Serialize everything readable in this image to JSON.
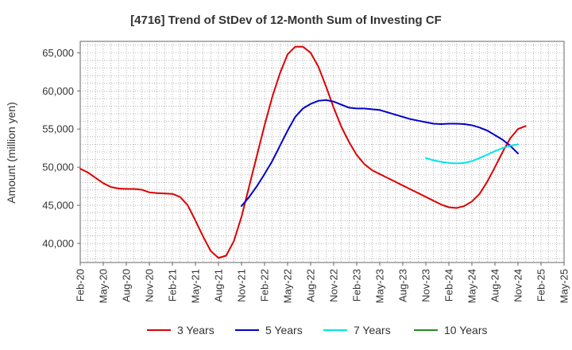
{
  "chart_data": {
    "type": "line",
    "title": "[4716]  Trend of StDev of 12-Month Sum of Investing CF",
    "xlabel": "",
    "ylabel": "Amount (million yen)",
    "x_ticks": [
      "Feb-20",
      "May-20",
      "Aug-20",
      "Nov-20",
      "Feb-21",
      "May-21",
      "Aug-21",
      "Nov-21",
      "Feb-22",
      "May-22",
      "Aug-22",
      "Nov-22",
      "Feb-23",
      "May-23",
      "Aug-23",
      "Nov-23",
      "Feb-24",
      "May-24",
      "Aug-24",
      "Nov-24",
      "Feb-25",
      "May-25"
    ],
    "y_ticks": [
      "40,000",
      "45,000",
      "50,000",
      "55,000",
      "60,000",
      "65,000"
    ],
    "y_tick_values": [
      40000,
      45000,
      50000,
      55000,
      60000,
      65000
    ],
    "ylim": [
      37500,
      66500
    ],
    "x_months": [
      "2020-02",
      "2025-05"
    ],
    "grid": true,
    "legend_position": "bottom",
    "series": [
      {
        "name": "3 Years",
        "color": "#dd0000",
        "points": [
          [
            "2020-02",
            49800
          ],
          [
            "2020-03",
            49300
          ],
          [
            "2020-04",
            48600
          ],
          [
            "2020-05",
            47900
          ],
          [
            "2020-06",
            47400
          ],
          [
            "2020-07",
            47200
          ],
          [
            "2020-08",
            47150
          ],
          [
            "2020-09",
            47150
          ],
          [
            "2020-10",
            47050
          ],
          [
            "2020-11",
            46700
          ],
          [
            "2020-12",
            46600
          ],
          [
            "2021-01",
            46550
          ],
          [
            "2021-02",
            46500
          ],
          [
            "2021-03",
            46100
          ],
          [
            "2021-04",
            45000
          ],
          [
            "2021-05",
            43000
          ],
          [
            "2021-06",
            40900
          ],
          [
            "2021-07",
            39000
          ],
          [
            "2021-08",
            38100
          ],
          [
            "2021-09",
            38400
          ],
          [
            "2021-10",
            40300
          ],
          [
            "2021-11",
            43500
          ],
          [
            "2021-12",
            47500
          ],
          [
            "2022-01",
            51500
          ],
          [
            "2022-02",
            55500
          ],
          [
            "2022-03",
            59200
          ],
          [
            "2022-04",
            62300
          ],
          [
            "2022-05",
            64800
          ],
          [
            "2022-06",
            65800
          ],
          [
            "2022-07",
            65800
          ],
          [
            "2022-08",
            65000
          ],
          [
            "2022-09",
            63200
          ],
          [
            "2022-10",
            60600
          ],
          [
            "2022-11",
            57800
          ],
          [
            "2022-12",
            55300
          ],
          [
            "2023-01",
            53300
          ],
          [
            "2023-02",
            51600
          ],
          [
            "2023-03",
            50400
          ],
          [
            "2023-04",
            49600
          ],
          [
            "2023-05",
            49100
          ],
          [
            "2023-06",
            48600
          ],
          [
            "2023-07",
            48100
          ],
          [
            "2023-08",
            47600
          ],
          [
            "2023-09",
            47100
          ],
          [
            "2023-10",
            46600
          ],
          [
            "2023-11",
            46100
          ],
          [
            "2023-12",
            45600
          ],
          [
            "2024-01",
            45100
          ],
          [
            "2024-02",
            44750
          ],
          [
            "2024-03",
            44650
          ],
          [
            "2024-04",
            44900
          ],
          [
            "2024-05",
            45500
          ],
          [
            "2024-06",
            46500
          ],
          [
            "2024-07",
            48100
          ],
          [
            "2024-08",
            50000
          ],
          [
            "2024-09",
            52000
          ],
          [
            "2024-10",
            53800
          ],
          [
            "2024-11",
            55000
          ],
          [
            "2024-12",
            55400
          ]
        ]
      },
      {
        "name": "5 Years",
        "color": "#0000cc",
        "points": [
          [
            "2021-11",
            44900
          ],
          [
            "2021-12",
            46100
          ],
          [
            "2022-01",
            47500
          ],
          [
            "2022-02",
            49100
          ],
          [
            "2022-03",
            50800
          ],
          [
            "2022-04",
            52800
          ],
          [
            "2022-05",
            54800
          ],
          [
            "2022-06",
            56600
          ],
          [
            "2022-07",
            57700
          ],
          [
            "2022-08",
            58300
          ],
          [
            "2022-09",
            58700
          ],
          [
            "2022-10",
            58800
          ],
          [
            "2022-11",
            58600
          ],
          [
            "2022-12",
            58200
          ],
          [
            "2023-01",
            57800
          ],
          [
            "2023-02",
            57700
          ],
          [
            "2023-03",
            57700
          ],
          [
            "2023-04",
            57600
          ],
          [
            "2023-05",
            57500
          ],
          [
            "2023-06",
            57200
          ],
          [
            "2023-07",
            56900
          ],
          [
            "2023-08",
            56600
          ],
          [
            "2023-09",
            56300
          ],
          [
            "2023-10",
            56100
          ],
          [
            "2023-11",
            55900
          ],
          [
            "2023-12",
            55700
          ],
          [
            "2024-01",
            55650
          ],
          [
            "2024-02",
            55700
          ],
          [
            "2024-03",
            55700
          ],
          [
            "2024-04",
            55650
          ],
          [
            "2024-05",
            55500
          ],
          [
            "2024-06",
            55200
          ],
          [
            "2024-07",
            54800
          ],
          [
            "2024-08",
            54200
          ],
          [
            "2024-09",
            53600
          ],
          [
            "2024-10",
            52800
          ],
          [
            "2024-11",
            51800
          ]
        ]
      },
      {
        "name": "7 Years",
        "color": "#00e5e5",
        "points": [
          [
            "2023-11",
            51200
          ],
          [
            "2023-12",
            50900
          ],
          [
            "2024-01",
            50700
          ],
          [
            "2024-02",
            50550
          ],
          [
            "2024-03",
            50500
          ],
          [
            "2024-04",
            50550
          ],
          [
            "2024-05",
            50800
          ],
          [
            "2024-06",
            51200
          ],
          [
            "2024-07",
            51650
          ],
          [
            "2024-08",
            52100
          ],
          [
            "2024-09",
            52500
          ],
          [
            "2024-10",
            52800
          ],
          [
            "2024-11",
            53000
          ]
        ]
      },
      {
        "name": "10 Years",
        "color": "#228b22",
        "points": []
      }
    ]
  }
}
